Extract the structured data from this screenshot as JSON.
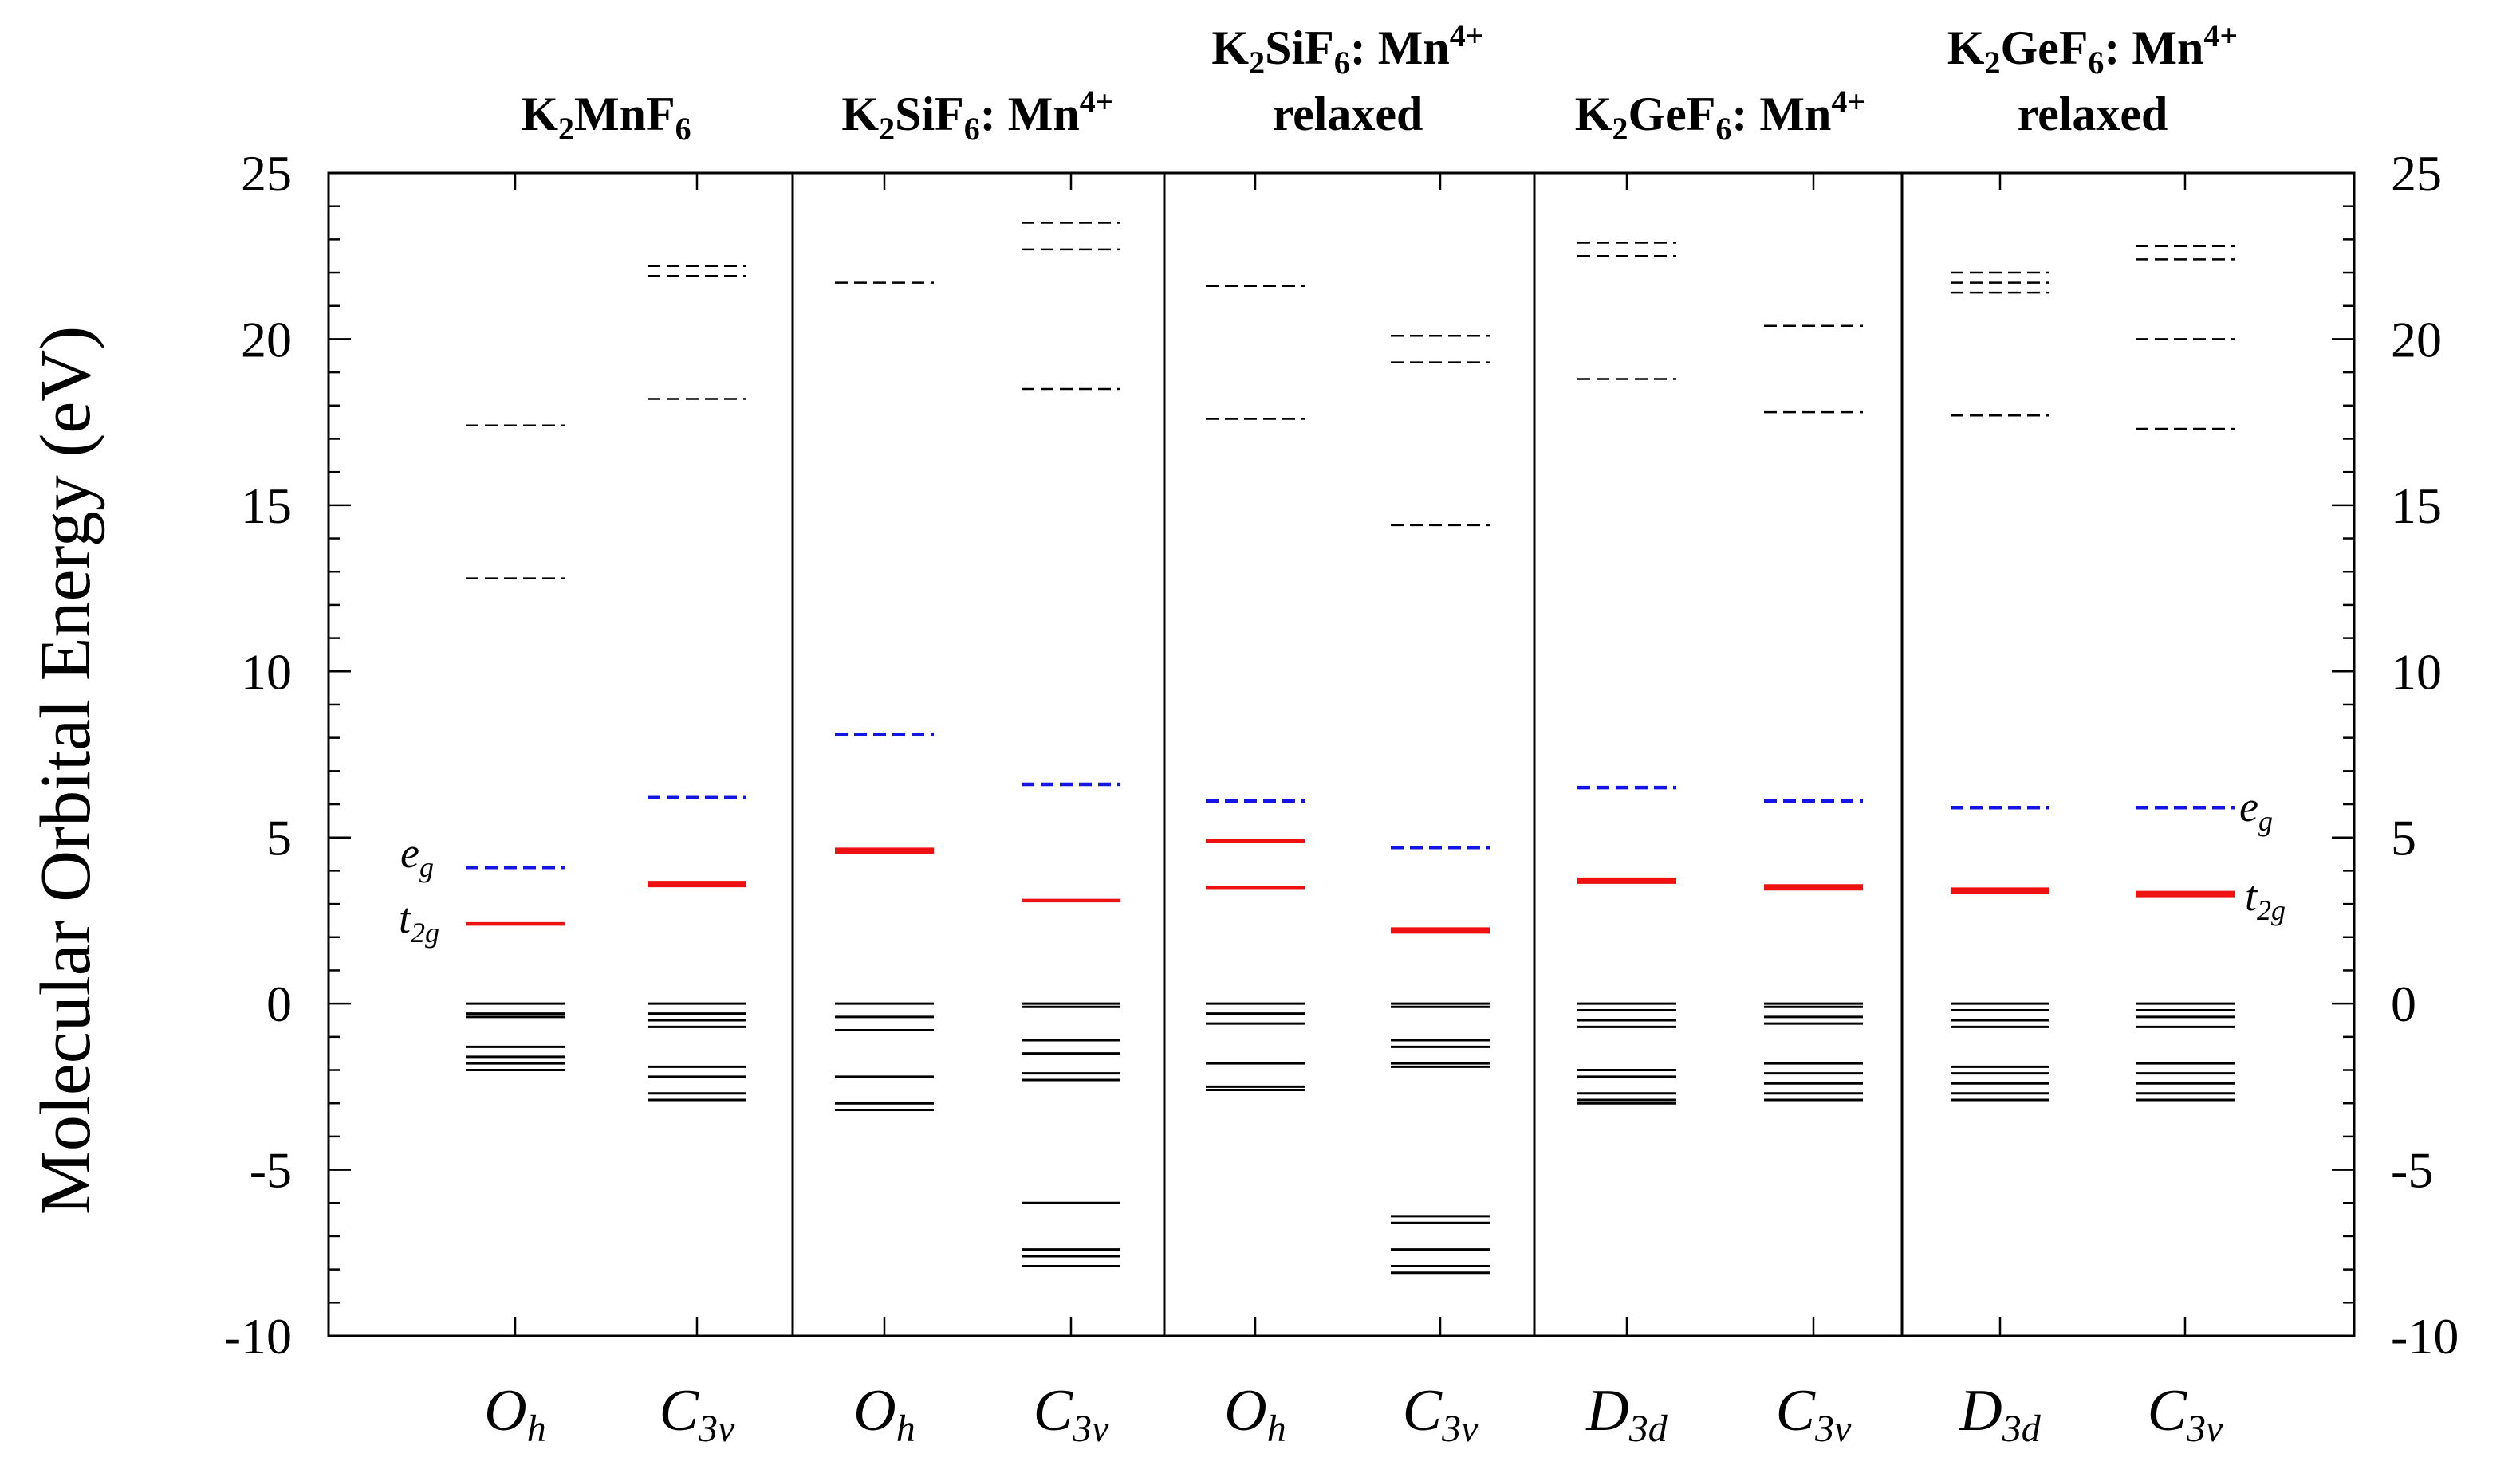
{
  "chart_data": {
    "type": "energy-level-diagram",
    "ylabel": "Molecular Orbital Energy (eV)",
    "ylim": [
      -10,
      25
    ],
    "y_ticks": [
      -10,
      -5,
      0,
      5,
      10,
      15,
      20,
      25
    ],
    "line_styles": {
      "unoccupied": {
        "color": "#000000",
        "dash": true
      },
      "eg": {
        "color": "#1515e6",
        "dash": true
      },
      "t2g": {
        "color": "#ee1111",
        "dash": false
      },
      "occupied": {
        "color": "#000000",
        "dash": false
      }
    },
    "panels": [
      {
        "title": {
          "main": "K",
          "sub1": "2",
          "mid": "MnF",
          "sub2": "6",
          "rest": "",
          "sup": "",
          "line2": ""
        },
        "columns": [
          {
            "symmetry": {
              "base": "O",
              "sub": "h"
            },
            "levels": {
              "unoccupied": [
                17.4,
                12.8
              ],
              "eg": [
                4.1
              ],
              "t2g": [
                2.4
              ],
              "t2g_bold": false,
              "occupied": [
                0.0,
                -0.3,
                -0.4,
                -1.3,
                -1.6,
                -1.8,
                -2.0
              ]
            }
          },
          {
            "symmetry": {
              "base": "C",
              "sub": "3v"
            },
            "levels": {
              "unoccupied": [
                22.2,
                21.9,
                18.2
              ],
              "eg": [
                6.2
              ],
              "t2g": [
                3.6
              ],
              "t2g_bold": true,
              "occupied": [
                0.0,
                -0.3,
                -0.5,
                -0.7,
                -1.9,
                -2.2,
                -2.7,
                -2.9
              ]
            }
          }
        ]
      },
      {
        "title": {
          "main": "K",
          "sub1": "2",
          "mid": "SiF",
          "sub2": "6",
          "rest": ": Mn",
          "sup": "4+",
          "line2": ""
        },
        "columns": [
          {
            "symmetry": {
              "base": "O",
              "sub": "h"
            },
            "levels": {
              "unoccupied": [
                21.7
              ],
              "eg": [
                8.1
              ],
              "t2g": [
                4.6
              ],
              "t2g_bold": true,
              "occupied": [
                0.0,
                -0.4,
                -0.8,
                -2.2,
                -3.0,
                -3.2
              ]
            }
          },
          {
            "symmetry": {
              "base": "C",
              "sub": "3v"
            },
            "levels": {
              "unoccupied": [
                23.5,
                22.7,
                18.5
              ],
              "eg": [
                6.6
              ],
              "t2g": [
                3.1
              ],
              "t2g_bold": false,
              "occupied": [
                0.0,
                -0.1,
                -1.1,
                -1.5,
                -2.1,
                -2.3,
                -6.0,
                -7.4,
                -7.6,
                -7.9
              ]
            }
          }
        ]
      },
      {
        "title": {
          "main": "K",
          "sub1": "2",
          "mid": "SiF",
          "sub2": "6",
          "rest": ": Mn",
          "sup": "4+",
          "line2": "relaxed"
        },
        "columns": [
          {
            "symmetry": {
              "base": "O",
              "sub": "h"
            },
            "levels": {
              "unoccupied": [
                21.6,
                17.6
              ],
              "eg": [
                6.1
              ],
              "t2g": [
                4.9,
                3.5
              ],
              "t2g_bold": false,
              "occupied": [
                0.0,
                -0.3,
                -0.6,
                -1.8,
                -2.5,
                -2.6
              ]
            }
          },
          {
            "symmetry": {
              "base": "C",
              "sub": "3v"
            },
            "levels": {
              "unoccupied": [
                20.1,
                19.3,
                14.4
              ],
              "eg": [
                4.7
              ],
              "t2g": [
                2.2
              ],
              "t2g_bold": true,
              "occupied": [
                0.0,
                -0.1,
                -1.1,
                -1.3,
                -1.8,
                -1.9,
                -6.4,
                -6.6,
                -7.4,
                -7.9,
                -8.1
              ]
            }
          }
        ]
      },
      {
        "title": {
          "main": "K",
          "sub1": "2",
          "mid": "GeF",
          "sub2": "6",
          "rest": ": Mn",
          "sup": "4+",
          "line2": ""
        },
        "columns": [
          {
            "symmetry": {
              "base": "D",
              "sub": "3d"
            },
            "levels": {
              "unoccupied": [
                22.9,
                22.5,
                18.8
              ],
              "eg": [
                6.5
              ],
              "t2g": [
                3.7
              ],
              "t2g_bold": true,
              "occupied": [
                0.0,
                -0.2,
                -0.5,
                -0.7,
                -2.0,
                -2.2,
                -2.7,
                -2.9,
                -3.0
              ]
            }
          },
          {
            "symmetry": {
              "base": "C",
              "sub": "3v"
            },
            "levels": {
              "unoccupied": [
                20.4,
                17.8
              ],
              "eg": [
                6.1
              ],
              "t2g": [
                3.5
              ],
              "t2g_bold": true,
              "occupied": [
                0.0,
                -0.1,
                -0.4,
                -0.6,
                -1.8,
                -2.1,
                -2.4,
                -2.7,
                -2.9
              ]
            }
          }
        ]
      },
      {
        "title": {
          "main": "K",
          "sub1": "2",
          "mid": "GeF",
          "sub2": "6",
          "rest": ": Mn",
          "sup": "4+",
          "line2": "relaxed"
        },
        "columns": [
          {
            "symmetry": {
              "base": "D",
              "sub": "3d"
            },
            "levels": {
              "unoccupied": [
                22.0,
                21.7,
                21.4,
                17.7
              ],
              "eg": [
                5.9
              ],
              "t2g": [
                3.4
              ],
              "t2g_bold": true,
              "occupied": [
                0.0,
                -0.2,
                -0.5,
                -0.7,
                -1.9,
                -2.1,
                -2.4,
                -2.7,
                -2.9
              ]
            }
          },
          {
            "symmetry": {
              "base": "C",
              "sub": "3v"
            },
            "levels": {
              "unoccupied": [
                22.8,
                22.4,
                20.0,
                17.3
              ],
              "eg": [
                5.9
              ],
              "t2g": [
                3.3
              ],
              "t2g_bold": true,
              "occupied": [
                0.0,
                -0.2,
                -0.4,
                -0.7,
                -1.8,
                -2.1,
                -2.4,
                -2.7,
                -2.9
              ]
            }
          }
        ]
      }
    ],
    "annotations": {
      "left": {
        "eg": {
          "base": "e",
          "sub": "g"
        },
        "t2g": {
          "base": "t",
          "sub": "2g"
        }
      },
      "right": {
        "eg": {
          "base": "e",
          "sub": "g"
        },
        "t2g": {
          "base": "t",
          "sub": "2g"
        }
      }
    }
  }
}
